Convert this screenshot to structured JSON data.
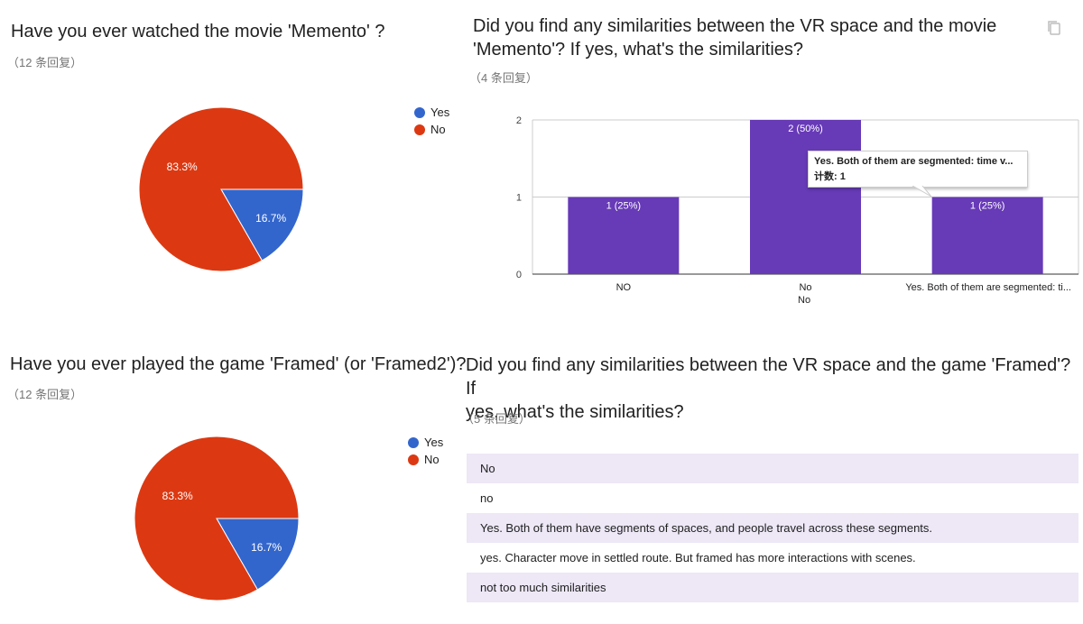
{
  "q1": {
    "title": "Have you ever watched the movie 'Memento' ?",
    "count": "（12 条回复）",
    "legend": [
      {
        "label": "Yes",
        "color": "#3366cc"
      },
      {
        "label": "No",
        "color": "#dc3912"
      }
    ]
  },
  "q2": {
    "title_line1": "Did you find any similarities between the VR space and the movie",
    "title_line2": "'Memento'? If yes, what's the similarities?",
    "count": "（4 条回复）",
    "xlabel": "No",
    "tooltip_title": "Yes. Both of them are segmented: time v...",
    "tooltip_count": "计数: 1"
  },
  "q3": {
    "title": "Have you ever played the game 'Framed' (or 'Framed2')?",
    "count": "（12 条回复）",
    "legend": [
      {
        "label": "Yes",
        "color": "#3366cc"
      },
      {
        "label": "No",
        "color": "#dc3912"
      }
    ]
  },
  "q4": {
    "title_line1": "Did you find any similarities between the VR space and the game 'Framed'? If",
    "title_line2": "yes, what's the similarities?",
    "count": "（5 条回复）",
    "responses": [
      "No",
      "no",
      "Yes. Both of them have segments of spaces, and people travel across these segments.",
      "yes. Character move in settled route. But framed has more interactions with scenes.",
      "not too much similarities"
    ]
  },
  "chart_data": [
    {
      "type": "pie",
      "labels": [
        "Yes",
        "No"
      ],
      "values": [
        16.7,
        83.3
      ],
      "value_labels": [
        "16.7%",
        "83.3%"
      ],
      "colors": [
        "#3366cc",
        "#dc3912"
      ],
      "legend": "right"
    },
    {
      "type": "bar",
      "categories": [
        "NO",
        "No",
        "Yes. Both of them are segmented: ti..."
      ],
      "values": [
        1,
        2,
        1
      ],
      "value_labels": [
        "1 (25%)",
        "2 (50%)",
        "1 (25%)"
      ],
      "ylim": [
        0,
        2
      ],
      "yticks": [
        "0",
        "1",
        "2"
      ],
      "bar_color": "#673ab7",
      "grid": true
    },
    {
      "type": "pie",
      "labels": [
        "Yes",
        "No"
      ],
      "values": [
        16.7,
        83.3
      ],
      "value_labels": [
        "16.7%",
        "83.3%"
      ],
      "colors": [
        "#3366cc",
        "#dc3912"
      ],
      "legend": "right"
    }
  ]
}
